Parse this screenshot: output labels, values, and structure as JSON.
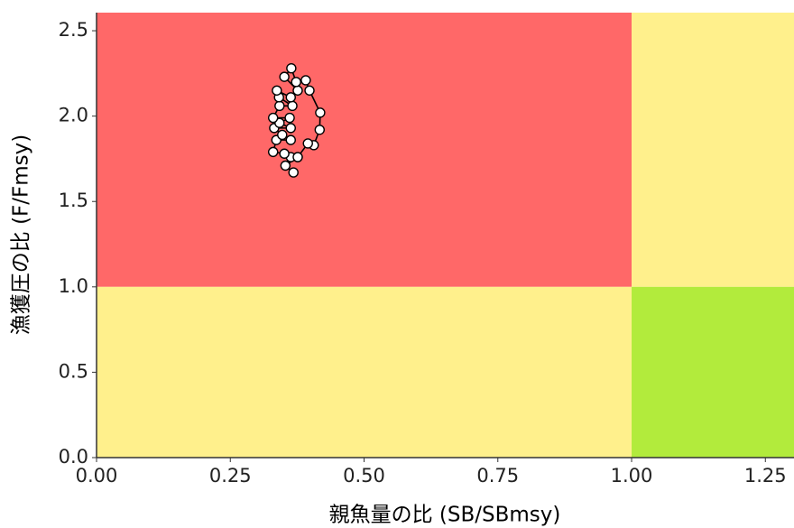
{
  "chart_data": {
    "type": "scatter",
    "x_label": "親魚量の比 (SB/SBmsy)",
    "y_label": "漁獲圧の比 (F/Fmsy)",
    "xlim": [
      0,
      1.3035
    ],
    "ylim": [
      0,
      2.606
    ],
    "xticks": [
      {
        "value": 0,
        "label": "0.00"
      },
      0.25,
      {
        "value": 0.5,
        "label": "0.50"
      },
      0.75,
      {
        "value": 1,
        "label": "1.00"
      },
      1.25
    ],
    "yticks": [
      {
        "value": 0,
        "label": "0.0"
      },
      0.5,
      {
        "value": 1,
        "label": "1.0"
      },
      1.5,
      {
        "value": 2,
        "label": "2.0"
      },
      2.5
    ],
    "ref_x": 1,
    "ref_y": 1,
    "zone_colors": {
      "overfished_overfishing": "#ff6868",
      "mixed": "#fff08c",
      "healthy": "#b2eb3c"
    },
    "series": [
      {
        "color": "#000000",
        "x": [
          0.368,
          0.353,
          0.376,
          0.363,
          0.351,
          0.33,
          0.336,
          0.363,
          0.347,
          0.332,
          0.363,
          0.342,
          0.361,
          0.33,
          0.342,
          0.366,
          0.341,
          0.337,
          0.363,
          0.376,
          0.351,
          0.364,
          0.373,
          0.391,
          0.398,
          0.418,
          0.417,
          0.406,
          0.395,
          0.376
        ],
        "y": [
          1.67,
          1.71,
          1.76,
          1.76,
          1.78,
          1.79,
          1.86,
          1.86,
          1.89,
          1.93,
          1.93,
          1.96,
          1.99,
          1.99,
          2.06,
          2.06,
          2.11,
          2.15,
          2.11,
          2.15,
          2.23,
          2.28,
          2.2,
          2.21,
          2.15,
          2.02,
          1.92,
          1.83,
          1.84,
          1.76
        ]
      }
    ]
  }
}
